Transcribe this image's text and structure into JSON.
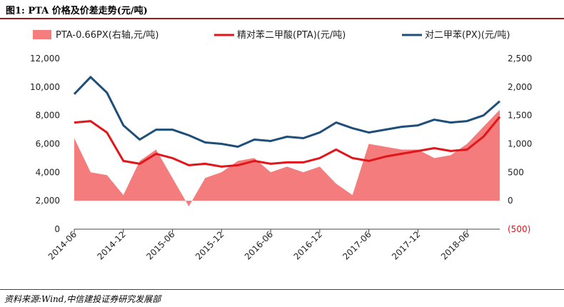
{
  "figure": {
    "title": "图1:  PTA 价格及价差走势(元/吨)",
    "source": "资料来源:Wind,中信建投证券研究发展部"
  },
  "chart_data": {
    "type": "line",
    "title": "",
    "legend_position": "top",
    "grid": false,
    "x": [
      "2014-06",
      "2014-08",
      "2014-10",
      "2014-12",
      "2015-02",
      "2015-04",
      "2015-06",
      "2015-08",
      "2015-10",
      "2015-12",
      "2016-02",
      "2016-04",
      "2016-06",
      "2016-08",
      "2016-10",
      "2016-12",
      "2017-02",
      "2017-04",
      "2017-06",
      "2017-08",
      "2017-10",
      "2017-12",
      "2018-02",
      "2018-04",
      "2018-06",
      "2018-08",
      "2018-09"
    ],
    "x_tick_labels": [
      "2014-06",
      "2014-12",
      "2015-06",
      "2015-12",
      "2016-06",
      "2016-12",
      "2017-06",
      "2017-12",
      "2018-06"
    ],
    "y_left": {
      "ylim": [
        0,
        12000
      ],
      "ticks": [
        "0",
        "2,000",
        "4,000",
        "6,000",
        "8,000",
        "10,000",
        "12,000"
      ]
    },
    "y_right": {
      "ylim": [
        -500,
        2500
      ],
      "ticks": [
        "(500)",
        "0",
        "500",
        "1,000",
        "1,500",
        "2,000",
        "2,500"
      ]
    },
    "series": [
      {
        "name": "PTA-0.66PX(右轴,元/吨)",
        "type": "area",
        "axis": "right",
        "color": "#f47c7c",
        "values": [
          1100,
          500,
          450,
          100,
          700,
          900,
          400,
          -100,
          400,
          500,
          700,
          750,
          500,
          600,
          500,
          600,
          300,
          100,
          1000,
          950,
          900,
          900,
          750,
          800,
          1000,
          1300,
          1600
        ]
      },
      {
        "name": "精对苯二甲酸(PTA)(元/吨)",
        "type": "line",
        "axis": "left",
        "color": "#e0161b",
        "values": [
          7500,
          7600,
          6800,
          4800,
          4600,
          5300,
          5000,
          4500,
          4600,
          4400,
          4500,
          4800,
          4600,
          4700,
          4700,
          5000,
          5600,
          5000,
          4800,
          5100,
          5300,
          5500,
          5700,
          5500,
          5600,
          6500,
          7900
        ]
      },
      {
        "name": "对二甲苯(PX)(元/吨)",
        "type": "line",
        "axis": "left",
        "color": "#1f4e79",
        "values": [
          9500,
          10700,
          9600,
          7300,
          6300,
          7000,
          7000,
          6600,
          6100,
          6000,
          5800,
          6300,
          6200,
          6500,
          6400,
          6800,
          7500,
          7100,
          6800,
          7000,
          7200,
          7300,
          7700,
          7500,
          7600,
          8000,
          9000
        ]
      }
    ]
  }
}
